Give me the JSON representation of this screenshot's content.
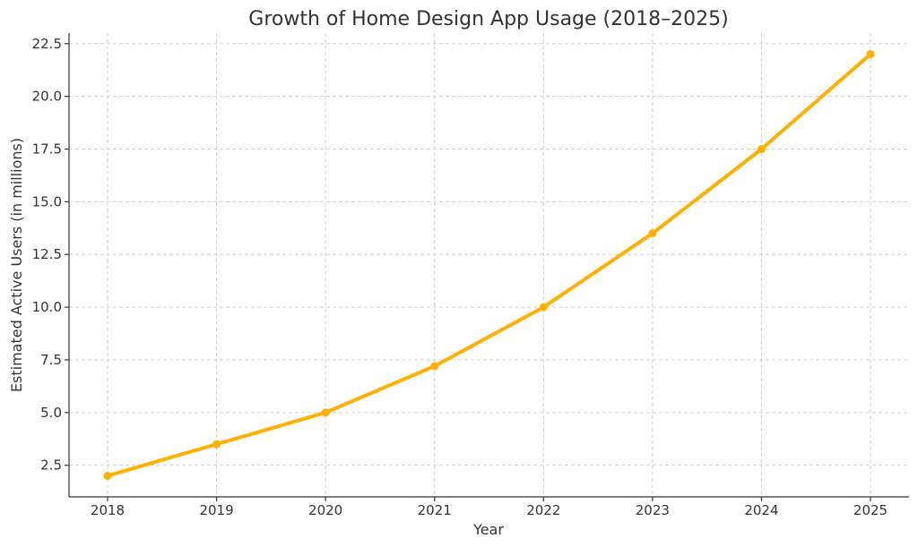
{
  "chart_data": {
    "type": "line",
    "title": "Growth of Home Design App Usage (2018–2025)",
    "xlabel": "Year",
    "ylabel": "Estimated Active Users (in millions)",
    "x": [
      "2018",
      "2019",
      "2020",
      "2021",
      "2022",
      "2023",
      "2024",
      "2025"
    ],
    "series": [
      {
        "values": [
          2.0,
          3.5,
          5.0,
          7.2,
          10.0,
          13.5,
          17.5,
          22.0
        ],
        "color": "#FFB000"
      }
    ],
    "y_ticks": [
      "2.5",
      "5.0",
      "7.5",
      "10.0",
      "12.5",
      "15.0",
      "17.5",
      "20.0",
      "22.5"
    ],
    "ylim": [
      1.0,
      23.0
    ],
    "grid": true,
    "markers": true
  }
}
